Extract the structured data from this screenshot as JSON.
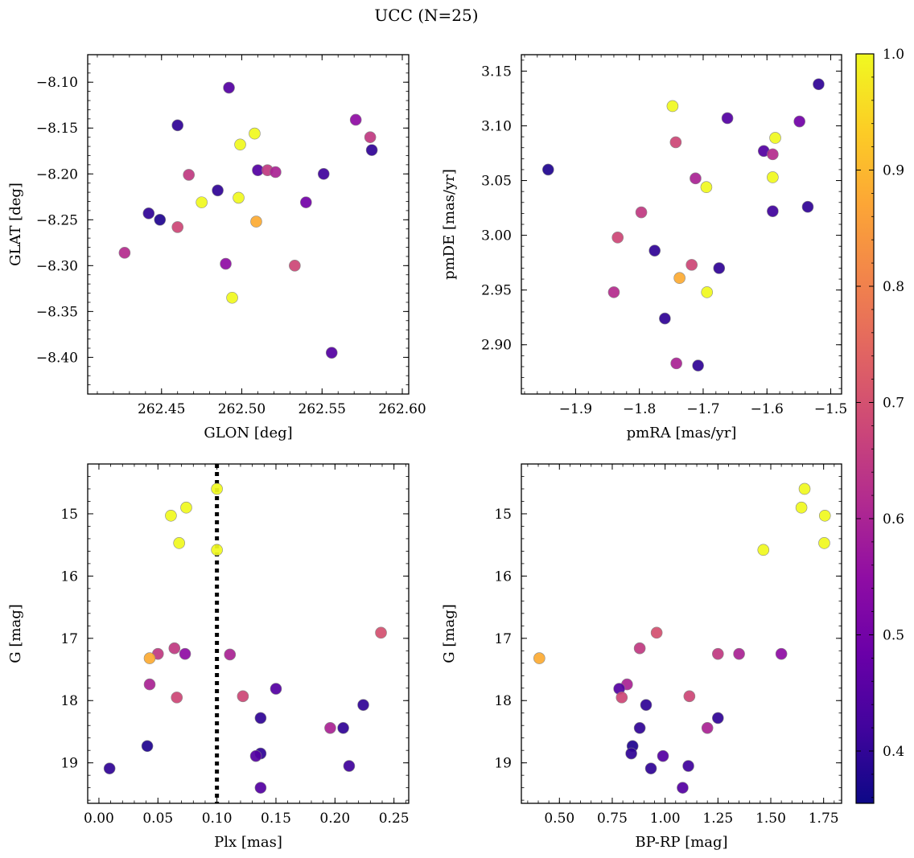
{
  "figure": {
    "title": "UCC (N=25)"
  },
  "colormap": {
    "name": "plasma",
    "min": 0.355,
    "max": 1.0,
    "ticks": [
      0.4,
      0.5,
      0.6,
      0.7,
      0.8,
      0.9,
      1.0
    ],
    "tick_labels": [
      "0.4",
      "0.5",
      "0.6",
      "0.7",
      "0.8",
      "0.9",
      "1.0"
    ]
  },
  "chart_data": [
    {
      "type": "scatter",
      "xlabel": "GLON [deg]",
      "ylabel": "GLAT [deg]",
      "xlim": [
        262.404,
        262.604
      ],
      "ylim": [
        -8.44,
        -8.07
      ],
      "y_inverted": false,
      "xticks": [
        262.45,
        262.5,
        262.55,
        262.6
      ],
      "xtick_labels": [
        "262.45",
        "262.50",
        "262.55",
        "262.60"
      ],
      "yticks": [
        -8.4,
        -8.35,
        -8.3,
        -8.25,
        -8.2,
        -8.15,
        -8.1
      ],
      "ytick_labels": [
        "−8.40",
        "−8.35",
        "−8.30",
        "−8.25",
        "−8.20",
        "−8.15",
        "−8.10"
      ],
      "points": [
        {
          "x": 262.492,
          "y": -8.106,
          "c": 0.45
        },
        {
          "x": 262.46,
          "y": -8.147,
          "c": 0.4
        },
        {
          "x": 262.571,
          "y": -8.141,
          "c": 0.55
        },
        {
          "x": 262.58,
          "y": -8.16,
          "c": 0.65
        },
        {
          "x": 262.581,
          "y": -8.174,
          "c": 0.4
        },
        {
          "x": 262.508,
          "y": -8.156,
          "c": 1.0
        },
        {
          "x": 262.499,
          "y": -8.168,
          "c": 1.0
        },
        {
          "x": 262.51,
          "y": -8.196,
          "c": 0.45
        },
        {
          "x": 262.516,
          "y": -8.196,
          "c": 0.65
        },
        {
          "x": 262.521,
          "y": -8.198,
          "c": 0.6
        },
        {
          "x": 262.551,
          "y": -8.2,
          "c": 0.42
        },
        {
          "x": 262.467,
          "y": -8.201,
          "c": 0.65
        },
        {
          "x": 262.485,
          "y": -8.218,
          "c": 0.4
        },
        {
          "x": 262.498,
          "y": -8.226,
          "c": 1.0
        },
        {
          "x": 262.475,
          "y": -8.231,
          "c": 1.0
        },
        {
          "x": 262.54,
          "y": -8.231,
          "c": 0.5
        },
        {
          "x": 262.442,
          "y": -8.243,
          "c": 0.4
        },
        {
          "x": 262.449,
          "y": -8.25,
          "c": 0.38
        },
        {
          "x": 262.509,
          "y": -8.252,
          "c": 0.88
        },
        {
          "x": 262.46,
          "y": -8.258,
          "c": 0.68
        },
        {
          "x": 262.427,
          "y": -8.286,
          "c": 0.62
        },
        {
          "x": 262.49,
          "y": -8.298,
          "c": 0.55
        },
        {
          "x": 262.533,
          "y": -8.3,
          "c": 0.68
        },
        {
          "x": 262.494,
          "y": -8.335,
          "c": 1.0
        },
        {
          "x": 262.556,
          "y": -8.395,
          "c": 0.45
        }
      ]
    },
    {
      "type": "scatter",
      "xlabel": "pmRA [mas/yr]",
      "ylabel": "pmDE [mas/yr]",
      "xlim": [
        -1.985,
        -1.483
      ],
      "ylim": [
        2.855,
        3.165
      ],
      "y_inverted": false,
      "xticks": [
        -1.9,
        -1.8,
        -1.7,
        -1.6,
        -1.5
      ],
      "xtick_labels": [
        "−1.9",
        "−1.8",
        "−1.7",
        "−1.6",
        "−1.5"
      ],
      "yticks": [
        2.9,
        2.95,
        3.0,
        3.05,
        3.1,
        3.15
      ],
      "ytick_labels": [
        "2.90",
        "2.95",
        "3.00",
        "3.05",
        "3.10",
        "3.15"
      ],
      "points": [
        {
          "x": -1.519,
          "y": 3.138,
          "c": 0.4
        },
        {
          "x": -1.748,
          "y": 3.118,
          "c": 1.0
        },
        {
          "x": -1.662,
          "y": 3.107,
          "c": 0.45
        },
        {
          "x": -1.549,
          "y": 3.104,
          "c": 0.5
        },
        {
          "x": -1.587,
          "y": 3.089,
          "c": 1.0
        },
        {
          "x": -1.743,
          "y": 3.085,
          "c": 0.68
        },
        {
          "x": -1.605,
          "y": 3.077,
          "c": 0.45
        },
        {
          "x": -1.591,
          "y": 3.074,
          "c": 0.62
        },
        {
          "x": -1.943,
          "y": 3.06,
          "c": 0.38
        },
        {
          "x": -1.591,
          "y": 3.053,
          "c": 1.0
        },
        {
          "x": -1.712,
          "y": 3.052,
          "c": 0.6
        },
        {
          "x": -1.695,
          "y": 3.044,
          "c": 1.0
        },
        {
          "x": -1.536,
          "y": 3.026,
          "c": 0.4
        },
        {
          "x": -1.591,
          "y": 3.022,
          "c": 0.42
        },
        {
          "x": -1.797,
          "y": 3.021,
          "c": 0.65
        },
        {
          "x": -1.834,
          "y": 2.998,
          "c": 0.68
        },
        {
          "x": -1.776,
          "y": 2.986,
          "c": 0.4
        },
        {
          "x": -1.718,
          "y": 2.973,
          "c": 0.68
        },
        {
          "x": -1.675,
          "y": 2.97,
          "c": 0.4
        },
        {
          "x": -1.737,
          "y": 2.961,
          "c": 0.88
        },
        {
          "x": -1.84,
          "y": 2.948,
          "c": 0.62
        },
        {
          "x": -1.694,
          "y": 2.948,
          "c": 1.0
        },
        {
          "x": -1.76,
          "y": 2.924,
          "c": 0.4
        },
        {
          "x": -1.742,
          "y": 2.883,
          "c": 0.6
        },
        {
          "x": -1.708,
          "y": 2.881,
          "c": 0.4
        }
      ]
    },
    {
      "type": "scatter",
      "xlabel": "Plx [mas]",
      "ylabel": "G [mag]",
      "xlim": [
        -0.0095,
        0.2625
      ],
      "ylim": [
        14.2,
        19.65
      ],
      "y_inverted": true,
      "xticks": [
        0.0,
        0.05,
        0.1,
        0.15,
        0.2,
        0.25
      ],
      "xtick_labels": [
        "0.00",
        "0.05",
        "0.10",
        "0.15",
        "0.20",
        "0.25"
      ],
      "yticks": [
        15,
        16,
        17,
        18,
        19
      ],
      "ytick_labels": [
        "15",
        "16",
        "17",
        "18",
        "19"
      ],
      "vline": {
        "x": 0.1,
        "style": "dotted",
        "color": "#000000"
      },
      "points": [
        {
          "x": 0.1,
          "y": 14.6,
          "c": 1.0
        },
        {
          "x": 0.074,
          "y": 14.9,
          "c": 1.0
        },
        {
          "x": 0.061,
          "y": 15.03,
          "c": 1.0
        },
        {
          "x": 0.068,
          "y": 15.47,
          "c": 1.0
        },
        {
          "x": 0.1,
          "y": 15.58,
          "c": 1.0
        },
        {
          "x": 0.239,
          "y": 16.91,
          "c": 0.7
        },
        {
          "x": 0.064,
          "y": 17.16,
          "c": 0.65
        },
        {
          "x": 0.05,
          "y": 17.25,
          "c": 0.65
        },
        {
          "x": 0.073,
          "y": 17.25,
          "c": 0.55
        },
        {
          "x": 0.111,
          "y": 17.26,
          "c": 0.6
        },
        {
          "x": 0.043,
          "y": 17.32,
          "c": 0.88
        },
        {
          "x": 0.043,
          "y": 17.74,
          "c": 0.6
        },
        {
          "x": 0.15,
          "y": 17.81,
          "c": 0.45
        },
        {
          "x": 0.122,
          "y": 17.93,
          "c": 0.68
        },
        {
          "x": 0.066,
          "y": 17.95,
          "c": 0.68
        },
        {
          "x": 0.224,
          "y": 18.07,
          "c": 0.4
        },
        {
          "x": 0.137,
          "y": 18.28,
          "c": 0.4
        },
        {
          "x": 0.196,
          "y": 18.44,
          "c": 0.6
        },
        {
          "x": 0.207,
          "y": 18.44,
          "c": 0.4
        },
        {
          "x": 0.041,
          "y": 18.73,
          "c": 0.38
        },
        {
          "x": 0.137,
          "y": 18.85,
          "c": 0.4
        },
        {
          "x": 0.133,
          "y": 18.89,
          "c": 0.45
        },
        {
          "x": 0.212,
          "y": 19.05,
          "c": 0.42
        },
        {
          "x": 0.009,
          "y": 19.09,
          "c": 0.4
        },
        {
          "x": 0.137,
          "y": 19.4,
          "c": 0.45
        }
      ]
    },
    {
      "type": "scatter",
      "xlabel": "BP-RP [mag]",
      "ylabel": "G [mag]",
      "xlim": [
        0.32,
        1.835
      ],
      "ylim": [
        14.2,
        19.65
      ],
      "y_inverted": true,
      "xticks": [
        0.5,
        0.75,
        1.0,
        1.25,
        1.5,
        1.75
      ],
      "xtick_labels": [
        "0.50",
        "0.75",
        "1.00",
        "1.25",
        "1.50",
        "1.75"
      ],
      "yticks": [
        15,
        16,
        17,
        18,
        19
      ],
      "ytick_labels": [
        "15",
        "16",
        "17",
        "18",
        "19"
      ],
      "points": [
        {
          "x": 1.66,
          "y": 14.6,
          "c": 1.0
        },
        {
          "x": 1.645,
          "y": 14.9,
          "c": 1.0
        },
        {
          "x": 1.756,
          "y": 15.03,
          "c": 1.0
        },
        {
          "x": 1.753,
          "y": 15.47,
          "c": 1.0
        },
        {
          "x": 1.465,
          "y": 15.58,
          "c": 1.0
        },
        {
          "x": 0.96,
          "y": 16.91,
          "c": 0.7
        },
        {
          "x": 0.88,
          "y": 17.16,
          "c": 0.65
        },
        {
          "x": 1.25,
          "y": 17.25,
          "c": 0.65
        },
        {
          "x": 1.35,
          "y": 17.25,
          "c": 0.6
        },
        {
          "x": 1.55,
          "y": 17.25,
          "c": 0.55
        },
        {
          "x": 0.405,
          "y": 17.32,
          "c": 0.88
        },
        {
          "x": 0.82,
          "y": 17.74,
          "c": 0.6
        },
        {
          "x": 0.783,
          "y": 17.81,
          "c": 0.45
        },
        {
          "x": 1.115,
          "y": 17.93,
          "c": 0.68
        },
        {
          "x": 0.795,
          "y": 17.95,
          "c": 0.68
        },
        {
          "x": 0.91,
          "y": 18.07,
          "c": 0.4
        },
        {
          "x": 1.25,
          "y": 18.28,
          "c": 0.4
        },
        {
          "x": 1.2,
          "y": 18.44,
          "c": 0.6
        },
        {
          "x": 0.88,
          "y": 18.44,
          "c": 0.4
        },
        {
          "x": 0.846,
          "y": 18.73,
          "c": 0.38
        },
        {
          "x": 0.84,
          "y": 18.85,
          "c": 0.4
        },
        {
          "x": 0.99,
          "y": 18.89,
          "c": 0.45
        },
        {
          "x": 1.11,
          "y": 19.05,
          "c": 0.42
        },
        {
          "x": 0.933,
          "y": 19.09,
          "c": 0.4
        },
        {
          "x": 1.083,
          "y": 19.4,
          "c": 0.45
        }
      ]
    }
  ]
}
